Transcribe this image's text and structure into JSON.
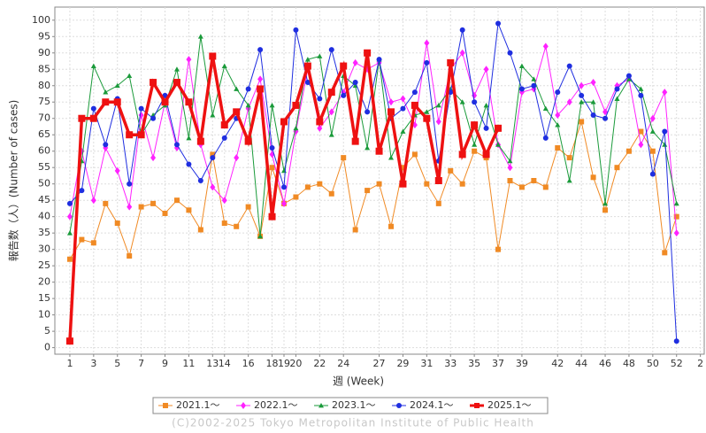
{
  "chart_data": {
    "type": "line",
    "xlabel": "週 (Week)",
    "ylabel": "報告数（人）(Number of cases)",
    "footer": "(C)2002-2025 Tokyo Metropolitan Institute of Public Health",
    "x": [
      1,
      2,
      3,
      4,
      5,
      6,
      7,
      8,
      9,
      10,
      11,
      12,
      13,
      14,
      15,
      16,
      17,
      18,
      19,
      20,
      21,
      22,
      23,
      24,
      25,
      26,
      27,
      28,
      29,
      30,
      31,
      32,
      33,
      34,
      35,
      36,
      37,
      38,
      39,
      40,
      41,
      42,
      43,
      44,
      45,
      46,
      47,
      48,
      49,
      50,
      51,
      52
    ],
    "xlim": [
      -0.26,
      54.4
    ],
    "xticks": [
      1,
      3,
      5,
      7,
      9,
      11,
      13,
      14,
      16,
      18,
      19,
      20,
      22,
      24,
      27,
      29,
      31,
      33,
      35,
      37,
      39,
      42,
      44,
      46,
      48,
      50,
      52,
      {
        "value": 54,
        "label": "2"
      }
    ],
    "ylim": [
      -2,
      104
    ],
    "yticks": [
      0,
      5,
      10,
      15,
      20,
      25,
      30,
      35,
      40,
      45,
      50,
      55,
      60,
      65,
      70,
      75,
      80,
      85,
      90,
      95,
      100
    ],
    "grid": true,
    "series": [
      {
        "name": "2021.1～",
        "color": "#f08a24",
        "marker": "square",
        "line_width": 1,
        "values": [
          27,
          33,
          32,
          44,
          38,
          28,
          43,
          44,
          41,
          45,
          42,
          36,
          59,
          38,
          37,
          43,
          34,
          55,
          44,
          46,
          49,
          50,
          47,
          58,
          36,
          48,
          50,
          37,
          55,
          59,
          50,
          44,
          54,
          50,
          60,
          58,
          30,
          51,
          49,
          51,
          49,
          61,
          58,
          69,
          52,
          42,
          55,
          60,
          66,
          60,
          29,
          40
        ]
      },
      {
        "name": "2022.1～",
        "color": "#ff22ff",
        "marker": "diamond",
        "line_width": 1,
        "values": [
          40,
          60,
          45,
          61,
          54,
          43,
          71,
          58,
          75,
          61,
          88,
          62,
          49,
          45,
          58,
          73,
          82,
          59,
          44,
          66,
          85,
          67,
          72,
          78,
          87,
          85,
          87,
          75,
          76,
          68,
          93,
          69,
          85,
          90,
          77,
          85,
          62,
          55,
          78,
          79,
          92,
          71,
          75,
          80,
          81,
          72,
          80,
          82,
          62,
          70,
          78,
          35
        ]
      },
      {
        "name": "2023.1～",
        "color": "#1a9a3a",
        "marker": "triangle",
        "line_width": 1,
        "values": [
          35,
          57,
          86,
          78,
          80,
          83,
          65,
          71,
          74,
          85,
          64,
          95,
          71,
          86,
          79,
          74,
          34,
          74,
          54,
          67,
          88,
          89,
          65,
          83,
          80,
          61,
          88,
          58,
          66,
          71,
          72,
          74,
          79,
          75,
          62,
          74,
          62,
          57,
          86,
          82,
          73,
          68,
          51,
          75,
          75,
          44,
          76,
          82,
          79,
          66,
          62,
          44
        ]
      },
      {
        "name": "2024.1～",
        "color": "#1f2ee0",
        "marker": "circle",
        "line_width": 1,
        "values": [
          44,
          48,
          73,
          62,
          76,
          50,
          73,
          70,
          77,
          62,
          56,
          51,
          58,
          64,
          70,
          79,
          91,
          61,
          49,
          97,
          81,
          76,
          91,
          77,
          81,
          72,
          88,
          70,
          73,
          78,
          87,
          57,
          78,
          97,
          75,
          67,
          99,
          90,
          79,
          80,
          64,
          78,
          86,
          77,
          71,
          70,
          79,
          83,
          77,
          53,
          66,
          2
        ]
      },
      {
        "name": "2025.1～",
        "color": "#ee1111",
        "marker": "square",
        "line_width": 3.5,
        "values": [
          2,
          70,
          70,
          75,
          75,
          65,
          65,
          81,
          75,
          81,
          75,
          63,
          89,
          68,
          72,
          63,
          79,
          40,
          69,
          74,
          86,
          69,
          78,
          86,
          63,
          90,
          60,
          72,
          50,
          74,
          70,
          51,
          87,
          59,
          68,
          59,
          67,
          null,
          null,
          null,
          null,
          null,
          null,
          null,
          null,
          null,
          null,
          null,
          null,
          null,
          null,
          null
        ]
      }
    ]
  }
}
